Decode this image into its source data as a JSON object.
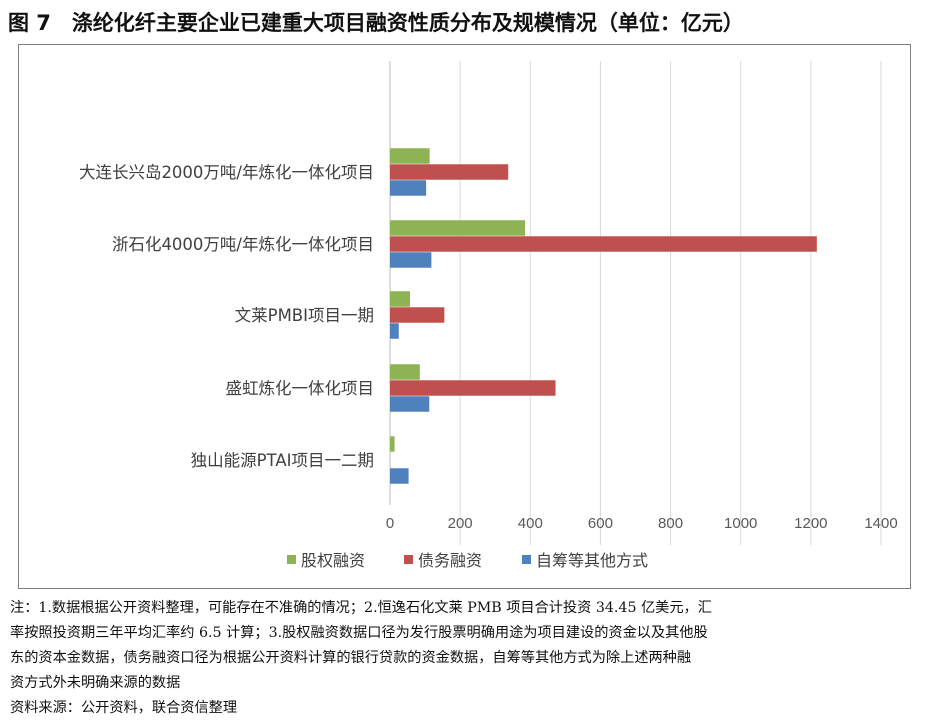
{
  "title": "图 7　涤纶化纤主要企业已建重大项目融资性质分布及规模情况（单位：亿元）",
  "colors": {
    "equity": "#8DB354",
    "debt": "#C0504D",
    "self": "#4F81BD",
    "grid": "#D9D9D9",
    "axis": "#BFBFBF"
  },
  "chart_data": {
    "type": "bar",
    "orientation": "horizontal",
    "categories": [
      "大连长兴岛2000万吨/年炼化一体化项目",
      "浙石化4000万吨/年炼化一体化项目",
      "文莱PMBI项目一期",
      "盛虹炼化一体化项目",
      "独山能源PTAI项目一二期"
    ],
    "series": [
      {
        "name": "股权融资",
        "color": "#8DB354",
        "values": [
          113,
          385,
          57,
          85,
          13
        ]
      },
      {
        "name": "债务融资",
        "color": "#C0504D",
        "values": [
          337,
          1217,
          155,
          472,
          0
        ]
      },
      {
        "name": "自筹等其他方式",
        "color": "#4F81BD",
        "values": [
          103,
          118,
          25,
          112,
          53
        ]
      }
    ],
    "xlim": [
      0,
      1400
    ],
    "xticks": [
      "0",
      "200",
      "400",
      "600",
      "800",
      "1000",
      "1200",
      "1400"
    ],
    "grid": true,
    "legend": "bottom"
  },
  "notes": [
    "注：1.数据根据公开资料整理，可能存在不准确的情况；2.恒逸石化文莱 PMB 项目合计投资 34.45 亿美元，汇",
    "率按照投资期三年平均汇率约 6.5 计算；3.股权融资数据口径为发行股票明确用途为项目建设的资金以及其他股",
    "东的资本金数据，债务融资口径为根据公开资料计算的银行贷款的资金数据，自筹等其他方式为除上述两种融",
    "资方式外未明确来源的数据"
  ],
  "source": "资料来源：公开资料，联合资信整理"
}
